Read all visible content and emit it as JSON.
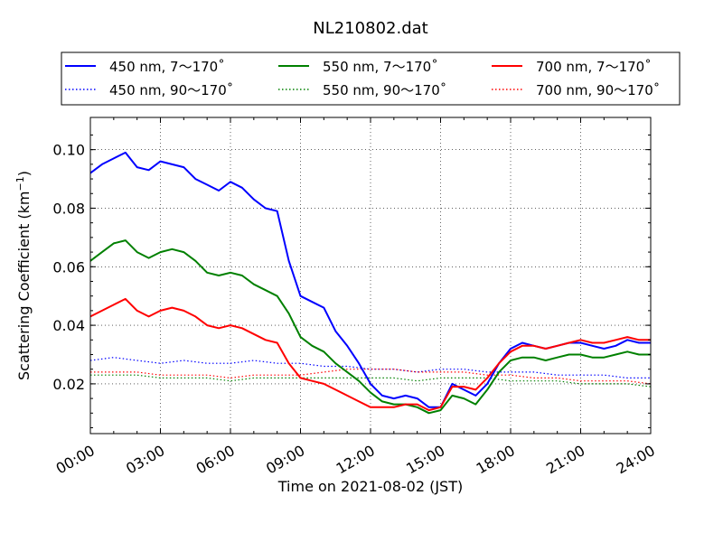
{
  "chart_data": {
    "type": "line",
    "title": "NL210802.dat",
    "xlabel": "Time on 2021-08-02 (JST)",
    "ylabel": "Scattering Coefficient (km⁻¹)",
    "x_units": "hours since 2021-08-02 00:00 JST",
    "xlim": [
      0,
      24
    ],
    "ylim": [
      0.003,
      0.111
    ],
    "grid": true,
    "legend_position": "top",
    "x_ticks": [
      {
        "v": 0,
        "label": "00:00"
      },
      {
        "v": 3,
        "label": "03:00"
      },
      {
        "v": 6,
        "label": "06:00"
      },
      {
        "v": 9,
        "label": "09:00"
      },
      {
        "v": 12,
        "label": "12:00"
      },
      {
        "v": 15,
        "label": "15:00"
      },
      {
        "v": 18,
        "label": "18:00"
      },
      {
        "v": 21,
        "label": "21:00"
      },
      {
        "v": 24,
        "label": "24:00"
      }
    ],
    "y_ticks": [
      {
        "v": 0.02,
        "label": "0.02"
      },
      {
        "v": 0.04,
        "label": "0.04"
      },
      {
        "v": 0.06,
        "label": "0.06"
      },
      {
        "v": 0.08,
        "label": "0.08"
      },
      {
        "v": 0.1,
        "label": "0.10"
      }
    ],
    "series": [
      {
        "name": "450 nm, 7～170˚",
        "color": "#0000ff",
        "style": "solid",
        "x": [
          0,
          0.5,
          1,
          1.5,
          2,
          2.5,
          3,
          3.5,
          4,
          4.5,
          5,
          5.5,
          6,
          6.5,
          7,
          7.5,
          8,
          8.5,
          9,
          9.5,
          10,
          10.5,
          11,
          11.5,
          12,
          12.5,
          13,
          13.5,
          14,
          14.5,
          15,
          15.5,
          16,
          16.5,
          17,
          17.5,
          18,
          18.5,
          19,
          19.5,
          20,
          20.5,
          21,
          21.5,
          22,
          22.5,
          23,
          23.5,
          24
        ],
        "y": [
          0.092,
          0.095,
          0.097,
          0.099,
          0.094,
          0.093,
          0.096,
          0.095,
          0.094,
          0.09,
          0.088,
          0.086,
          0.089,
          0.087,
          0.083,
          0.08,
          0.079,
          0.062,
          0.05,
          0.048,
          0.046,
          0.038,
          0.033,
          0.027,
          0.02,
          0.016,
          0.015,
          0.016,
          0.015,
          0.012,
          0.012,
          0.02,
          0.018,
          0.016,
          0.02,
          0.027,
          0.032,
          0.034,
          0.033,
          0.032,
          0.033,
          0.034,
          0.034,
          0.033,
          0.032,
          0.033,
          0.035,
          0.034,
          0.034
        ]
      },
      {
        "name": "450 nm, 90～170˚",
        "color": "#0000ff",
        "style": "dotted",
        "x": [
          0,
          1,
          2,
          3,
          4,
          5,
          6,
          7,
          8,
          9,
          10,
          11,
          12,
          13,
          14,
          15,
          16,
          17,
          18,
          19,
          20,
          21,
          22,
          23,
          24
        ],
        "y": [
          0.028,
          0.029,
          0.028,
          0.027,
          0.028,
          0.027,
          0.027,
          0.028,
          0.027,
          0.027,
          0.026,
          0.026,
          0.025,
          0.025,
          0.024,
          0.025,
          0.025,
          0.024,
          0.024,
          0.024,
          0.023,
          0.023,
          0.023,
          0.022,
          0.022
        ]
      },
      {
        "name": "550 nm, 7～170˚",
        "color": "#008000",
        "style": "solid",
        "x": [
          0,
          0.5,
          1,
          1.5,
          2,
          2.5,
          3,
          3.5,
          4,
          4.5,
          5,
          5.5,
          6,
          6.5,
          7,
          7.5,
          8,
          8.5,
          9,
          9.5,
          10,
          10.5,
          11,
          11.5,
          12,
          12.5,
          13,
          13.5,
          14,
          14.5,
          15,
          15.5,
          16,
          16.5,
          17,
          17.5,
          18,
          18.5,
          19,
          19.5,
          20,
          20.5,
          21,
          21.5,
          22,
          22.5,
          23,
          23.5,
          24
        ],
        "y": [
          0.062,
          0.065,
          0.068,
          0.069,
          0.065,
          0.063,
          0.065,
          0.066,
          0.065,
          0.062,
          0.058,
          0.057,
          0.058,
          0.057,
          0.054,
          0.052,
          0.05,
          0.044,
          0.036,
          0.033,
          0.031,
          0.027,
          0.024,
          0.021,
          0.017,
          0.014,
          0.013,
          0.013,
          0.012,
          0.01,
          0.011,
          0.016,
          0.015,
          0.013,
          0.018,
          0.024,
          0.028,
          0.029,
          0.029,
          0.028,
          0.029,
          0.03,
          0.03,
          0.029,
          0.029,
          0.03,
          0.031,
          0.03,
          0.03
        ]
      },
      {
        "name": "550 nm, 90～170˚",
        "color": "#008000",
        "style": "dotted",
        "x": [
          0,
          1,
          2,
          3,
          4,
          5,
          6,
          7,
          8,
          9,
          10,
          11,
          12,
          13,
          14,
          15,
          16,
          17,
          18,
          19,
          20,
          21,
          22,
          23,
          24
        ],
        "y": [
          0.023,
          0.023,
          0.023,
          0.022,
          0.022,
          0.022,
          0.021,
          0.022,
          0.022,
          0.022,
          0.022,
          0.022,
          0.022,
          0.022,
          0.021,
          0.022,
          0.022,
          0.022,
          0.021,
          0.021,
          0.021,
          0.02,
          0.02,
          0.02,
          0.019
        ]
      },
      {
        "name": "700 nm, 7～170˚",
        "color": "#ff0000",
        "style": "solid",
        "x": [
          0,
          0.5,
          1,
          1.5,
          2,
          2.5,
          3,
          3.5,
          4,
          4.5,
          5,
          5.5,
          6,
          6.5,
          7,
          7.5,
          8,
          8.5,
          9,
          9.5,
          10,
          10.5,
          11,
          11.5,
          12,
          12.5,
          13,
          13.5,
          14,
          14.5,
          15,
          15.5,
          16,
          16.5,
          17,
          17.5,
          18,
          18.5,
          19,
          19.5,
          20,
          20.5,
          21,
          21.5,
          22,
          22.5,
          23,
          23.5,
          24
        ],
        "y": [
          0.043,
          0.045,
          0.047,
          0.049,
          0.045,
          0.043,
          0.045,
          0.046,
          0.045,
          0.043,
          0.04,
          0.039,
          0.04,
          0.039,
          0.037,
          0.035,
          0.034,
          0.027,
          0.022,
          0.021,
          0.02,
          0.018,
          0.016,
          0.014,
          0.012,
          0.012,
          0.012,
          0.013,
          0.013,
          0.011,
          0.012,
          0.019,
          0.019,
          0.018,
          0.022,
          0.027,
          0.031,
          0.033,
          0.033,
          0.032,
          0.033,
          0.034,
          0.035,
          0.034,
          0.034,
          0.035,
          0.036,
          0.035,
          0.035
        ]
      },
      {
        "name": "700 nm, 90～170˚",
        "color": "#ff0000",
        "style": "dotted",
        "x": [
          0,
          1,
          2,
          3,
          4,
          5,
          6,
          7,
          8,
          9,
          10,
          11,
          12,
          13,
          14,
          15,
          16,
          17,
          18,
          19,
          20,
          21,
          22,
          23,
          24
        ],
        "y": [
          0.024,
          0.024,
          0.024,
          0.023,
          0.023,
          0.023,
          0.022,
          0.023,
          0.023,
          0.023,
          0.024,
          0.025,
          0.025,
          0.025,
          0.024,
          0.024,
          0.024,
          0.023,
          0.023,
          0.022,
          0.022,
          0.021,
          0.021,
          0.021,
          0.02
        ]
      }
    ]
  }
}
